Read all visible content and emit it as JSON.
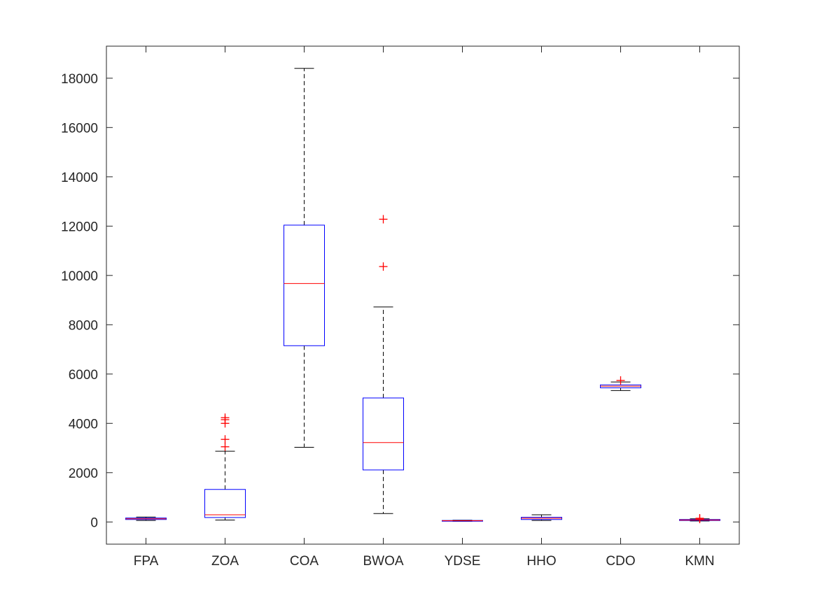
{
  "chart_data": {
    "type": "box",
    "title": "",
    "xlabel": "",
    "ylabel": "",
    "ylim": [
      -900,
      19300
    ],
    "yticks": [
      0,
      2000,
      4000,
      6000,
      8000,
      10000,
      12000,
      14000,
      16000,
      18000
    ],
    "ytick_labels": [
      "0",
      "2000",
      "4000",
      "6000",
      "8000",
      "10000",
      "12000",
      "14000",
      "16000",
      "18000"
    ],
    "grid": false,
    "legend": "none",
    "colors": {
      "box": "#0000ff",
      "median": "#ff0000",
      "whisker": "#000000",
      "outlier": "#ff0000",
      "axes": "#262626"
    },
    "categories": [
      "FPA",
      "ZOA",
      "COA",
      "BWOA",
      "YDSE",
      "HHO",
      "CDO",
      "KMN"
    ],
    "boxes": [
      {
        "name": "FPA",
        "whisker_low": 60,
        "q1": 100,
        "median": 130,
        "q3": 160,
        "whisker_high": 200,
        "outliers": []
      },
      {
        "name": "ZOA",
        "whisker_low": 80,
        "q1": 180,
        "median": 290,
        "q3": 1320,
        "whisker_high": 2870,
        "outliers": [
          3050,
          3350,
          4000,
          4150,
          4230
        ]
      },
      {
        "name": "COA",
        "whisker_low": 3030,
        "q1": 7150,
        "median": 9670,
        "q3": 12040,
        "whisker_high": 18400,
        "outliers": []
      },
      {
        "name": "BWOA",
        "whisker_low": 340,
        "q1": 2110,
        "median": 3220,
        "q3": 5030,
        "whisker_high": 8720,
        "outliers": [
          10360,
          12280
        ]
      },
      {
        "name": "YDSE",
        "whisker_low": 30,
        "q1": 40,
        "median": 50,
        "q3": 60,
        "whisker_high": 70,
        "outliers": []
      },
      {
        "name": "HHO",
        "whisker_low": 60,
        "q1": 100,
        "median": 150,
        "q3": 190,
        "whisker_high": 290,
        "outliers": []
      },
      {
        "name": "CDO",
        "whisker_low": 5330,
        "q1": 5440,
        "median": 5510,
        "q3": 5560,
        "whisker_high": 5680,
        "outliers": [
          5740
        ]
      },
      {
        "name": "KMN",
        "whisker_low": 40,
        "q1": 60,
        "median": 80,
        "q3": 100,
        "whisker_high": 130,
        "outliers": [
          120,
          150
        ]
      }
    ]
  }
}
